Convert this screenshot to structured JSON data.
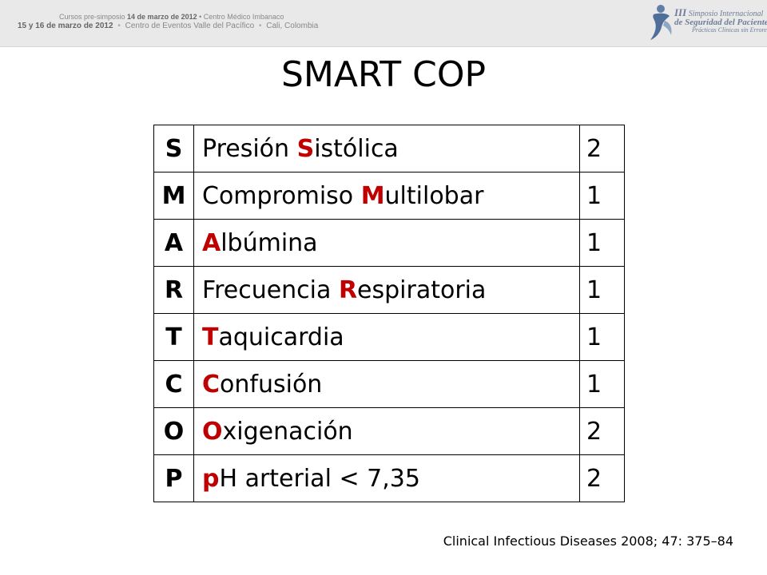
{
  "banner": {
    "line1_prefix": "Cursos pre-simposio",
    "line1_date": "14 de marzo de 2012",
    "line1_suffix": "Centro Médico Imbanaco",
    "line2_date": "15 y 16 de marzo de 2012",
    "line2_venue": "Centro de Eventos Valle del Pacífico",
    "line2_city": "Cali, Colombia",
    "logo_line1_num": "III",
    "logo_line1": "Simposio Internacional",
    "logo_line2": "Seguridad del Paciente",
    "logo_line2_prefix": "de",
    "logo_line3": "Prácticas Clínicas sin Errores",
    "logo_color": "#6f7f98"
  },
  "title": "SMART COP",
  "accent_color": "#c00000",
  "rows": [
    {
      "letter": "S",
      "pre": "Presión ",
      "hl": "S",
      "post": "istólica",
      "points": "2"
    },
    {
      "letter": "M",
      "pre": "Compromiso ",
      "hl": "M",
      "post": "ultilobar",
      "points": "1"
    },
    {
      "letter": "A",
      "pre": "",
      "hl": "A",
      "post": "lbúmina",
      "points": "1"
    },
    {
      "letter": "R",
      "pre": "Frecuencia ",
      "hl": "R",
      "post": "espiratoria",
      "points": "1"
    },
    {
      "letter": "T",
      "pre": "",
      "hl": "T",
      "post": "aquicardia",
      "points": "1"
    },
    {
      "letter": "C",
      "pre": "",
      "hl": "C",
      "post": "onfusión",
      "points": "1"
    },
    {
      "letter": "O",
      "pre": "",
      "hl": "O",
      "post": "xigenación",
      "points": "2"
    },
    {
      "letter": "P",
      "pre": "",
      "hl": "p",
      "post": "H arterial < 7,35",
      "points": "2"
    }
  ],
  "citation": "Clinical Infectious Diseases  2008; 47: 375–84"
}
